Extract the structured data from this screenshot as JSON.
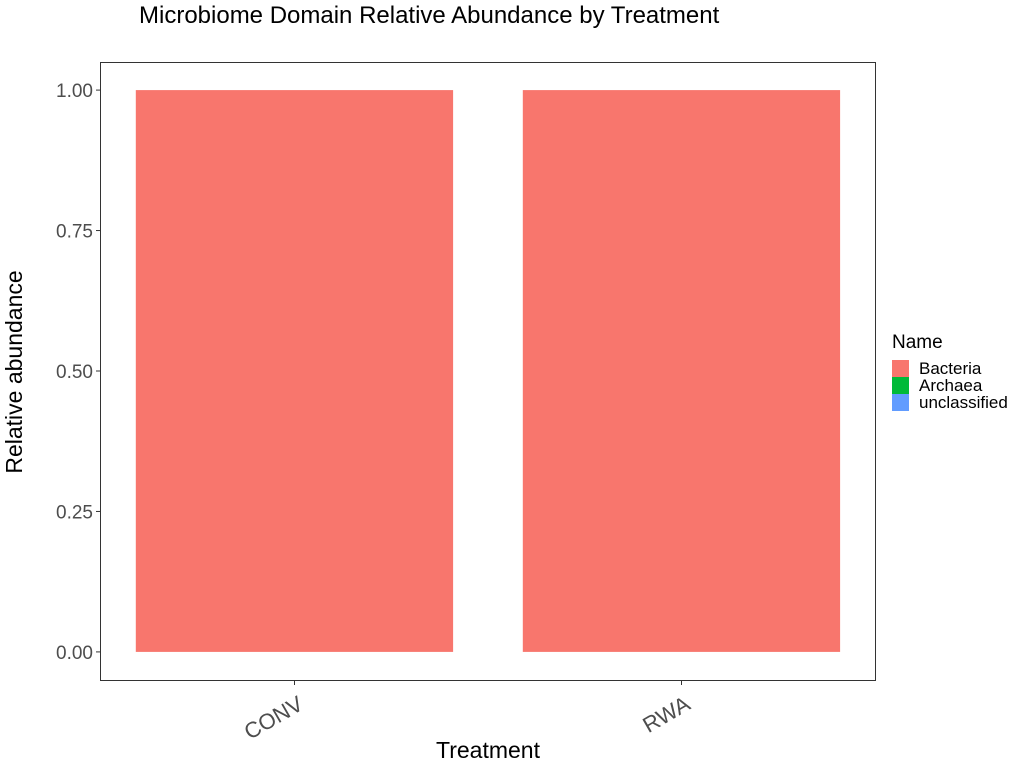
{
  "chart_data": {
    "type": "bar",
    "stacked": true,
    "title": "Microbiome Domain Relative Abundance by Treatment",
    "xlabel": "Treatment",
    "ylabel": "Relative abundance",
    "categories": [
      "CONV",
      "RWA"
    ],
    "ylim": [
      -0.05,
      1.05
    ],
    "yticks": [
      0.0,
      0.25,
      0.5,
      0.75,
      1.0
    ],
    "ytick_labels": [
      "0.00",
      "0.25",
      "0.50",
      "0.75",
      "1.00"
    ],
    "grid": false,
    "legend": {
      "title": "Name",
      "position": "right"
    },
    "series": [
      {
        "name": "Bacteria",
        "color": "#F8766D",
        "values": [
          1.0,
          1.0
        ]
      },
      {
        "name": "Archaea",
        "color": "#00BA38",
        "values": [
          0.0,
          0.0
        ]
      },
      {
        "name": "unclassified",
        "color": "#619CFF",
        "values": [
          0.0,
          0.0
        ]
      }
    ]
  }
}
